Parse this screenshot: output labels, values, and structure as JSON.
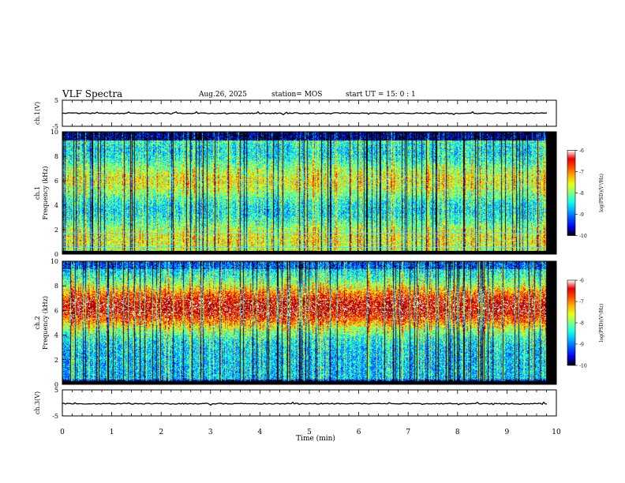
{
  "header": {
    "title": "VLF Spectra",
    "date": "Aug.26, 2025",
    "station": "station= MOS",
    "start": "start  UT =   15: 0  : 1"
  },
  "chart_data": [
    {
      "id": "ch1-waveform",
      "type": "line",
      "ylabel": "ch.1(V)",
      "ylim": [
        -5,
        5
      ],
      "yticks": [
        "5",
        "-5"
      ],
      "baseline": 0
    },
    {
      "id": "ch1-spectrogram",
      "type": "heatmap",
      "ylabel": "Frequency (kHz)",
      "ylabel2": "ch.1",
      "ylim": [
        0,
        10
      ],
      "yticks": [
        "0",
        "2",
        "4",
        "6",
        "8",
        "10"
      ],
      "xlim": [
        0,
        10
      ],
      "colorbar": {
        "label": "log(PSD)(V²/Hz)",
        "range": [
          -10,
          -6
        ],
        "ticks": [
          "-6",
          "-7",
          "-8",
          "-9",
          "-10"
        ]
      }
    },
    {
      "id": "ch2-spectrogram",
      "type": "heatmap",
      "ylabel": "Frequency (kHz)",
      "ylabel2": "ch.2",
      "ylim": [
        0,
        10
      ],
      "yticks": [
        "0",
        "2",
        "4",
        "6",
        "8",
        "10"
      ],
      "xlim": [
        0,
        10
      ],
      "colorbar": {
        "label": "log(PSD)(V²/Hz)",
        "range": [
          -10,
          -6
        ],
        "ticks": [
          "-6",
          "-7",
          "-8",
          "-9",
          "-10"
        ]
      }
    },
    {
      "id": "ch3-waveform",
      "type": "line",
      "ylabel": "ch.3(V)",
      "ylim": [
        -5,
        5
      ],
      "yticks": [
        "5",
        "-5"
      ],
      "baseline": 0
    }
  ],
  "xaxis": {
    "label": "Time  (min)",
    "ticks": [
      "0",
      "1",
      "2",
      "3",
      "4",
      "5",
      "6",
      "7",
      "8",
      "9",
      "10"
    ],
    "range": [
      0,
      10
    ]
  },
  "colors": {
    "high": "#ff0000",
    "mid": "#00ff00",
    "low": "#0000ff",
    "floor": "#000000"
  }
}
